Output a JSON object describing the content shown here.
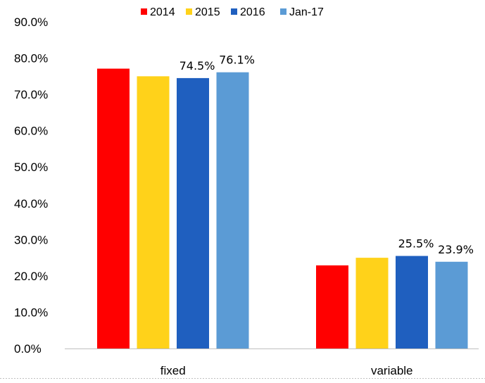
{
  "chart_data": {
    "type": "bar",
    "categories": [
      "fixed",
      "variable"
    ],
    "series": [
      {
        "name": "2014",
        "color": "#ff0000",
        "values": [
          77.1,
          22.9
        ]
      },
      {
        "name": "2015",
        "color": "#ffd21a",
        "values": [
          75.0,
          25.0
        ]
      },
      {
        "name": "2016",
        "color": "#1f5fbf",
        "values": [
          74.5,
          25.5
        ]
      },
      {
        "name": "Jan-17",
        "color": "#5b9bd5",
        "values": [
          76.1,
          23.9
        ]
      }
    ],
    "data_labels": [
      {
        "series": 2,
        "category": 0,
        "text": "74.5%"
      },
      {
        "series": 3,
        "category": 0,
        "text": "76.1%"
      },
      {
        "series": 2,
        "category": 1,
        "text": "25.5%"
      },
      {
        "series": 3,
        "category": 1,
        "text": "23.9%"
      }
    ],
    "ylim": [
      0,
      90
    ],
    "yticks": [
      "0.0%",
      "10.0%",
      "20.0%",
      "30.0%",
      "40.0%",
      "50.0%",
      "60.0%",
      "70.0%",
      "80.0%",
      "90.0%"
    ],
    "legend_position": "top",
    "grid": false
  }
}
